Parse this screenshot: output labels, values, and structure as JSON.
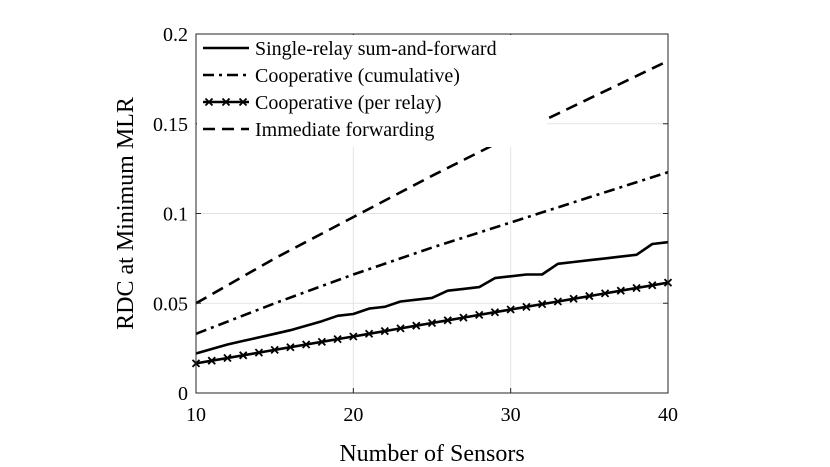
{
  "chart_data": {
    "type": "line",
    "title": "",
    "xlabel": "Number of Sensors",
    "ylabel": "RDC at Minimum MLR",
    "xlim": [
      10,
      40
    ],
    "ylim": [
      0,
      0.2
    ],
    "xticks": [
      10,
      20,
      30,
      40
    ],
    "xtick_labels": [
      "10",
      "20",
      "30",
      "40"
    ],
    "yticks": [
      0,
      0.05,
      0.1,
      0.15,
      0.2
    ],
    "ytick_labels": [
      "0",
      "0.05",
      "0.1",
      "0.15",
      "0.2"
    ],
    "grid": true,
    "legend_position": "top-left",
    "series": [
      {
        "name": "Single-relay sum-and-forward",
        "style": "solid",
        "marker": "none",
        "x": [
          10,
          11,
          12,
          13,
          14,
          15,
          16,
          17,
          18,
          19,
          20,
          21,
          22,
          23,
          24,
          25,
          26,
          27,
          28,
          29,
          30,
          31,
          32,
          33,
          34,
          35,
          36,
          37,
          38,
          39,
          40
        ],
        "values": [
          0.022,
          0.0245,
          0.027,
          0.029,
          0.031,
          0.033,
          0.035,
          0.0375,
          0.04,
          0.043,
          0.044,
          0.047,
          0.048,
          0.051,
          0.052,
          0.053,
          0.057,
          0.058,
          0.059,
          0.064,
          0.065,
          0.066,
          0.066,
          0.072,
          0.073,
          0.074,
          0.075,
          0.076,
          0.077,
          0.083,
          0.084
        ]
      },
      {
        "name": "Cooperative (cumulative)",
        "style": "dashdot",
        "marker": "none",
        "x": [
          10,
          15,
          20,
          25,
          30,
          35,
          40
        ],
        "values": [
          0.033,
          0.05,
          0.066,
          0.081,
          0.095,
          0.109,
          0.123
        ]
      },
      {
        "name": "Cooperative (per relay)",
        "style": "solid",
        "marker": "x",
        "x": [
          10,
          11,
          12,
          13,
          14,
          15,
          16,
          17,
          18,
          19,
          20,
          21,
          22,
          23,
          24,
          25,
          26,
          27,
          28,
          29,
          30,
          31,
          32,
          33,
          34,
          35,
          36,
          37,
          38,
          39,
          40
        ],
        "values": [
          0.0165,
          0.018,
          0.0195,
          0.021,
          0.0225,
          0.024,
          0.0255,
          0.027,
          0.0285,
          0.03,
          0.0315,
          0.033,
          0.0345,
          0.036,
          0.0375,
          0.039,
          0.0405,
          0.042,
          0.0435,
          0.045,
          0.0465,
          0.048,
          0.0495,
          0.051,
          0.0525,
          0.054,
          0.0555,
          0.057,
          0.0585,
          0.06,
          0.0615
        ]
      },
      {
        "name": "Immediate forwarding",
        "style": "dashed",
        "marker": "none",
        "x": [
          10,
          15,
          20,
          25,
          30,
          35,
          40
        ],
        "values": [
          0.05,
          0.075,
          0.098,
          0.121,
          0.143,
          0.164,
          0.185
        ]
      }
    ]
  }
}
